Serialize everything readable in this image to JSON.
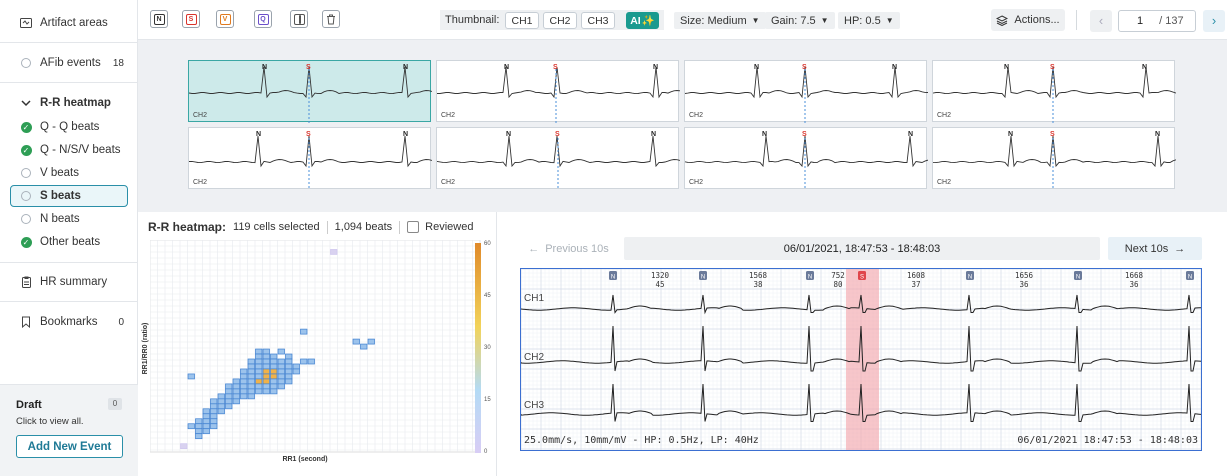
{
  "sidebar": {
    "artifact": "Artifact areas",
    "afib": {
      "label": "AFib events",
      "count": "18"
    },
    "rr_section": "R-R heatmap",
    "items": [
      {
        "label": "Q - Q beats",
        "state": "check"
      },
      {
        "label": "Q - N/S/V beats",
        "state": "check"
      },
      {
        "label": "V beats",
        "state": "empty"
      },
      {
        "label": "S beats",
        "state": "selected"
      },
      {
        "label": "N beats",
        "state": "empty"
      },
      {
        "label": "Other beats",
        "state": "check"
      }
    ],
    "hr_summary": "HR summary",
    "bookmarks": {
      "label": "Bookmarks",
      "count": "0"
    },
    "draft": {
      "title": "Draft",
      "count": "0",
      "sub": "Click to view all.",
      "button": "Add New Event"
    }
  },
  "toolbar": {
    "beat_buttons": [
      {
        "letter": "N",
        "color": "#333333"
      },
      {
        "letter": "S",
        "color": "#d9332b"
      },
      {
        "letter": "V",
        "color": "#e07a1f"
      },
      {
        "letter": "Q",
        "color": "#6b4fc9"
      }
    ],
    "thumbnail_label": "Thumbnail:",
    "channels": [
      "CH1",
      "CH2",
      "CH3"
    ],
    "ai_label": "AI",
    "size": "Size: Medium",
    "gain": "Gain: 7.5",
    "hp": "HP: 0.5",
    "actions": "Actions...",
    "page_current": "1",
    "page_total": "/ 137"
  },
  "thumbnails": {
    "channel_label": "CH2",
    "cards": [
      {
        "beats": [
          "N",
          "S",
          "N"
        ],
        "selected": true
      },
      {
        "beats": [
          "N",
          "S",
          "N"
        ],
        "selected": false
      },
      {
        "beats": [
          "N",
          "S",
          "N"
        ],
        "selected": false
      },
      {
        "beats": [
          "N",
          "S",
          "N"
        ],
        "selected": false
      },
      {
        "beats": [
          "N",
          "S",
          "N"
        ],
        "selected": false
      },
      {
        "beats": [
          "N",
          "S",
          "N"
        ],
        "selected": false
      },
      {
        "beats": [
          "N",
          "S",
          "N"
        ],
        "selected": false
      },
      {
        "beats": [
          "N",
          "S",
          "N"
        ],
        "selected": false
      }
    ]
  },
  "heatmap": {
    "title": "R-R heatmap:",
    "cells_selected": "119 cells selected",
    "beats": "1,094 beats",
    "reviewed": "Reviewed",
    "xlabel": "RR1 (second)",
    "ylabel": "RR1/RR0 (ratio)",
    "scale_ticks": [
      "60",
      "45",
      "30",
      "15",
      "0"
    ]
  },
  "strip": {
    "prev": "Previous 10s",
    "next": "Next 10s",
    "time_range": "06/01/2021, 18:47:53 - 18:48:03",
    "channels": [
      "CH1",
      "CH2",
      "CH3"
    ],
    "intervals": [
      {
        "rr": "1320",
        "hr": "45"
      },
      {
        "rr": "1568",
        "hr": "38"
      },
      {
        "rr": "752",
        "hr": "80"
      },
      {
        "rr": "1608",
        "hr": "37"
      },
      {
        "rr": "1656",
        "hr": "36"
      },
      {
        "rr": "1668",
        "hr": "36"
      }
    ],
    "footer_left": "25.0mm/s, 10mm/mV - HP: 0.5Hz, LP: 40Hz",
    "footer_right": "06/01/2021 18:47:53 - 18:48:03"
  }
}
